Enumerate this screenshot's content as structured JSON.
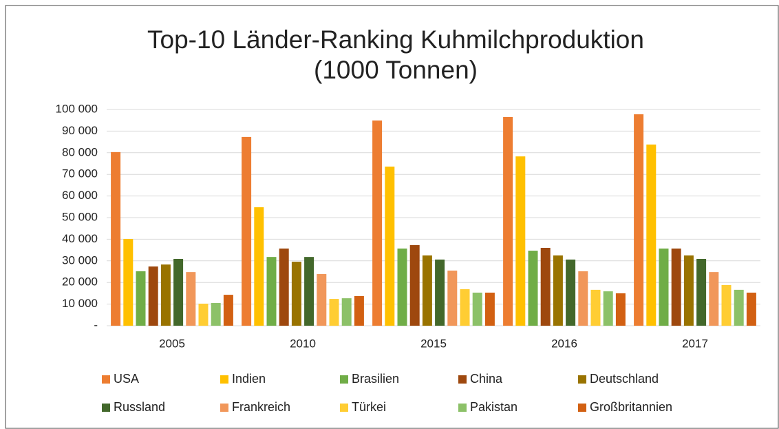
{
  "chart_data": {
    "type": "bar",
    "title": "Top-10 Länder-Ranking Kuhmilchproduktion",
    "subtitle": "(1000 Tonnen)",
    "categories": [
      "2005",
      "2010",
      "2015",
      "2016",
      "2017"
    ],
    "series": [
      {
        "name": "USA",
        "color": "#ed7d31",
        "values": [
          80300,
          87300,
          94900,
          96500,
          97800
        ]
      },
      {
        "name": "Indien",
        "color": "#ffc000",
        "values": [
          40100,
          54800,
          73600,
          78300,
          83800
        ]
      },
      {
        "name": "Brasilien",
        "color": "#70ad47",
        "values": [
          25200,
          31800,
          35700,
          34700,
          35700
        ]
      },
      {
        "name": "China",
        "color": "#9e480e",
        "values": [
          27400,
          35700,
          37300,
          36000,
          35700
        ]
      },
      {
        "name": "Deutschland",
        "color": "#997300",
        "values": [
          28300,
          29600,
          32500,
          32500,
          32500
        ]
      },
      {
        "name": "Russland",
        "color": "#43682b",
        "values": [
          30900,
          31800,
          30600,
          30600,
          30900
        ]
      },
      {
        "name": "Frankreich",
        "color": "#f1975a",
        "values": [
          24800,
          23900,
          25500,
          25200,
          24800
        ]
      },
      {
        "name": "Türkei",
        "color": "#ffcd33",
        "values": [
          10200,
          12400,
          16900,
          16600,
          18800
        ]
      },
      {
        "name": "Pakistan",
        "color": "#8cc168",
        "values": [
          10500,
          12700,
          15300,
          15900,
          16600
        ]
      },
      {
        "name": "Großbritannien",
        "color": "#d26012",
        "values": [
          14300,
          13700,
          15300,
          15000,
          15300
        ]
      }
    ],
    "ylim": [
      0,
      100000
    ],
    "yticks": [
      {
        "value": 0,
        "label": "-"
      },
      {
        "value": 10000,
        "label": "10 000"
      },
      {
        "value": 20000,
        "label": "20 000"
      },
      {
        "value": 30000,
        "label": "30 000"
      },
      {
        "value": 40000,
        "label": "40 000"
      },
      {
        "value": 50000,
        "label": "50 000"
      },
      {
        "value": 60000,
        "label": "60 000"
      },
      {
        "value": 70000,
        "label": "70 000"
      },
      {
        "value": 80000,
        "label": "80 000"
      },
      {
        "value": 90000,
        "label": "90 000"
      },
      {
        "value": 100000,
        "label": "100 000"
      }
    ],
    "grid": true,
    "legend": "bottom"
  }
}
